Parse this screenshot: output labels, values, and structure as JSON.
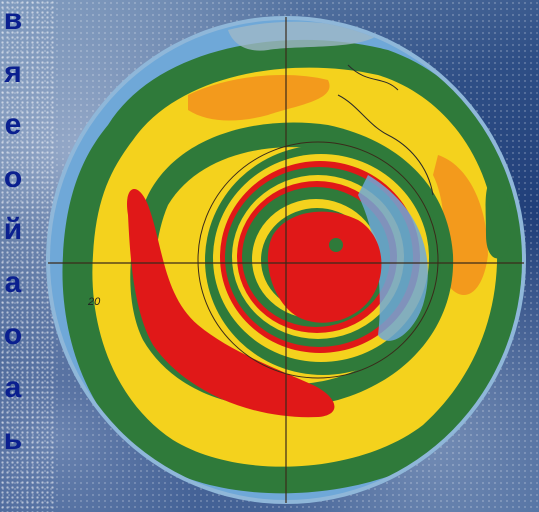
{
  "title_letters": [
    "в",
    "я",
    "е",
    "о",
    "й",
    "а",
    "о",
    "а",
    "ь"
  ],
  "map_label": "20",
  "colors": {
    "ocean": "#6fa8d8",
    "land_green": "#2f7a3a",
    "yellow": "#f4d21d",
    "orange": "#f39a1c",
    "red": "#e01818",
    "text_blue": "#0a1f8f"
  },
  "icons": [
    "globe-ozone-map"
  ]
}
